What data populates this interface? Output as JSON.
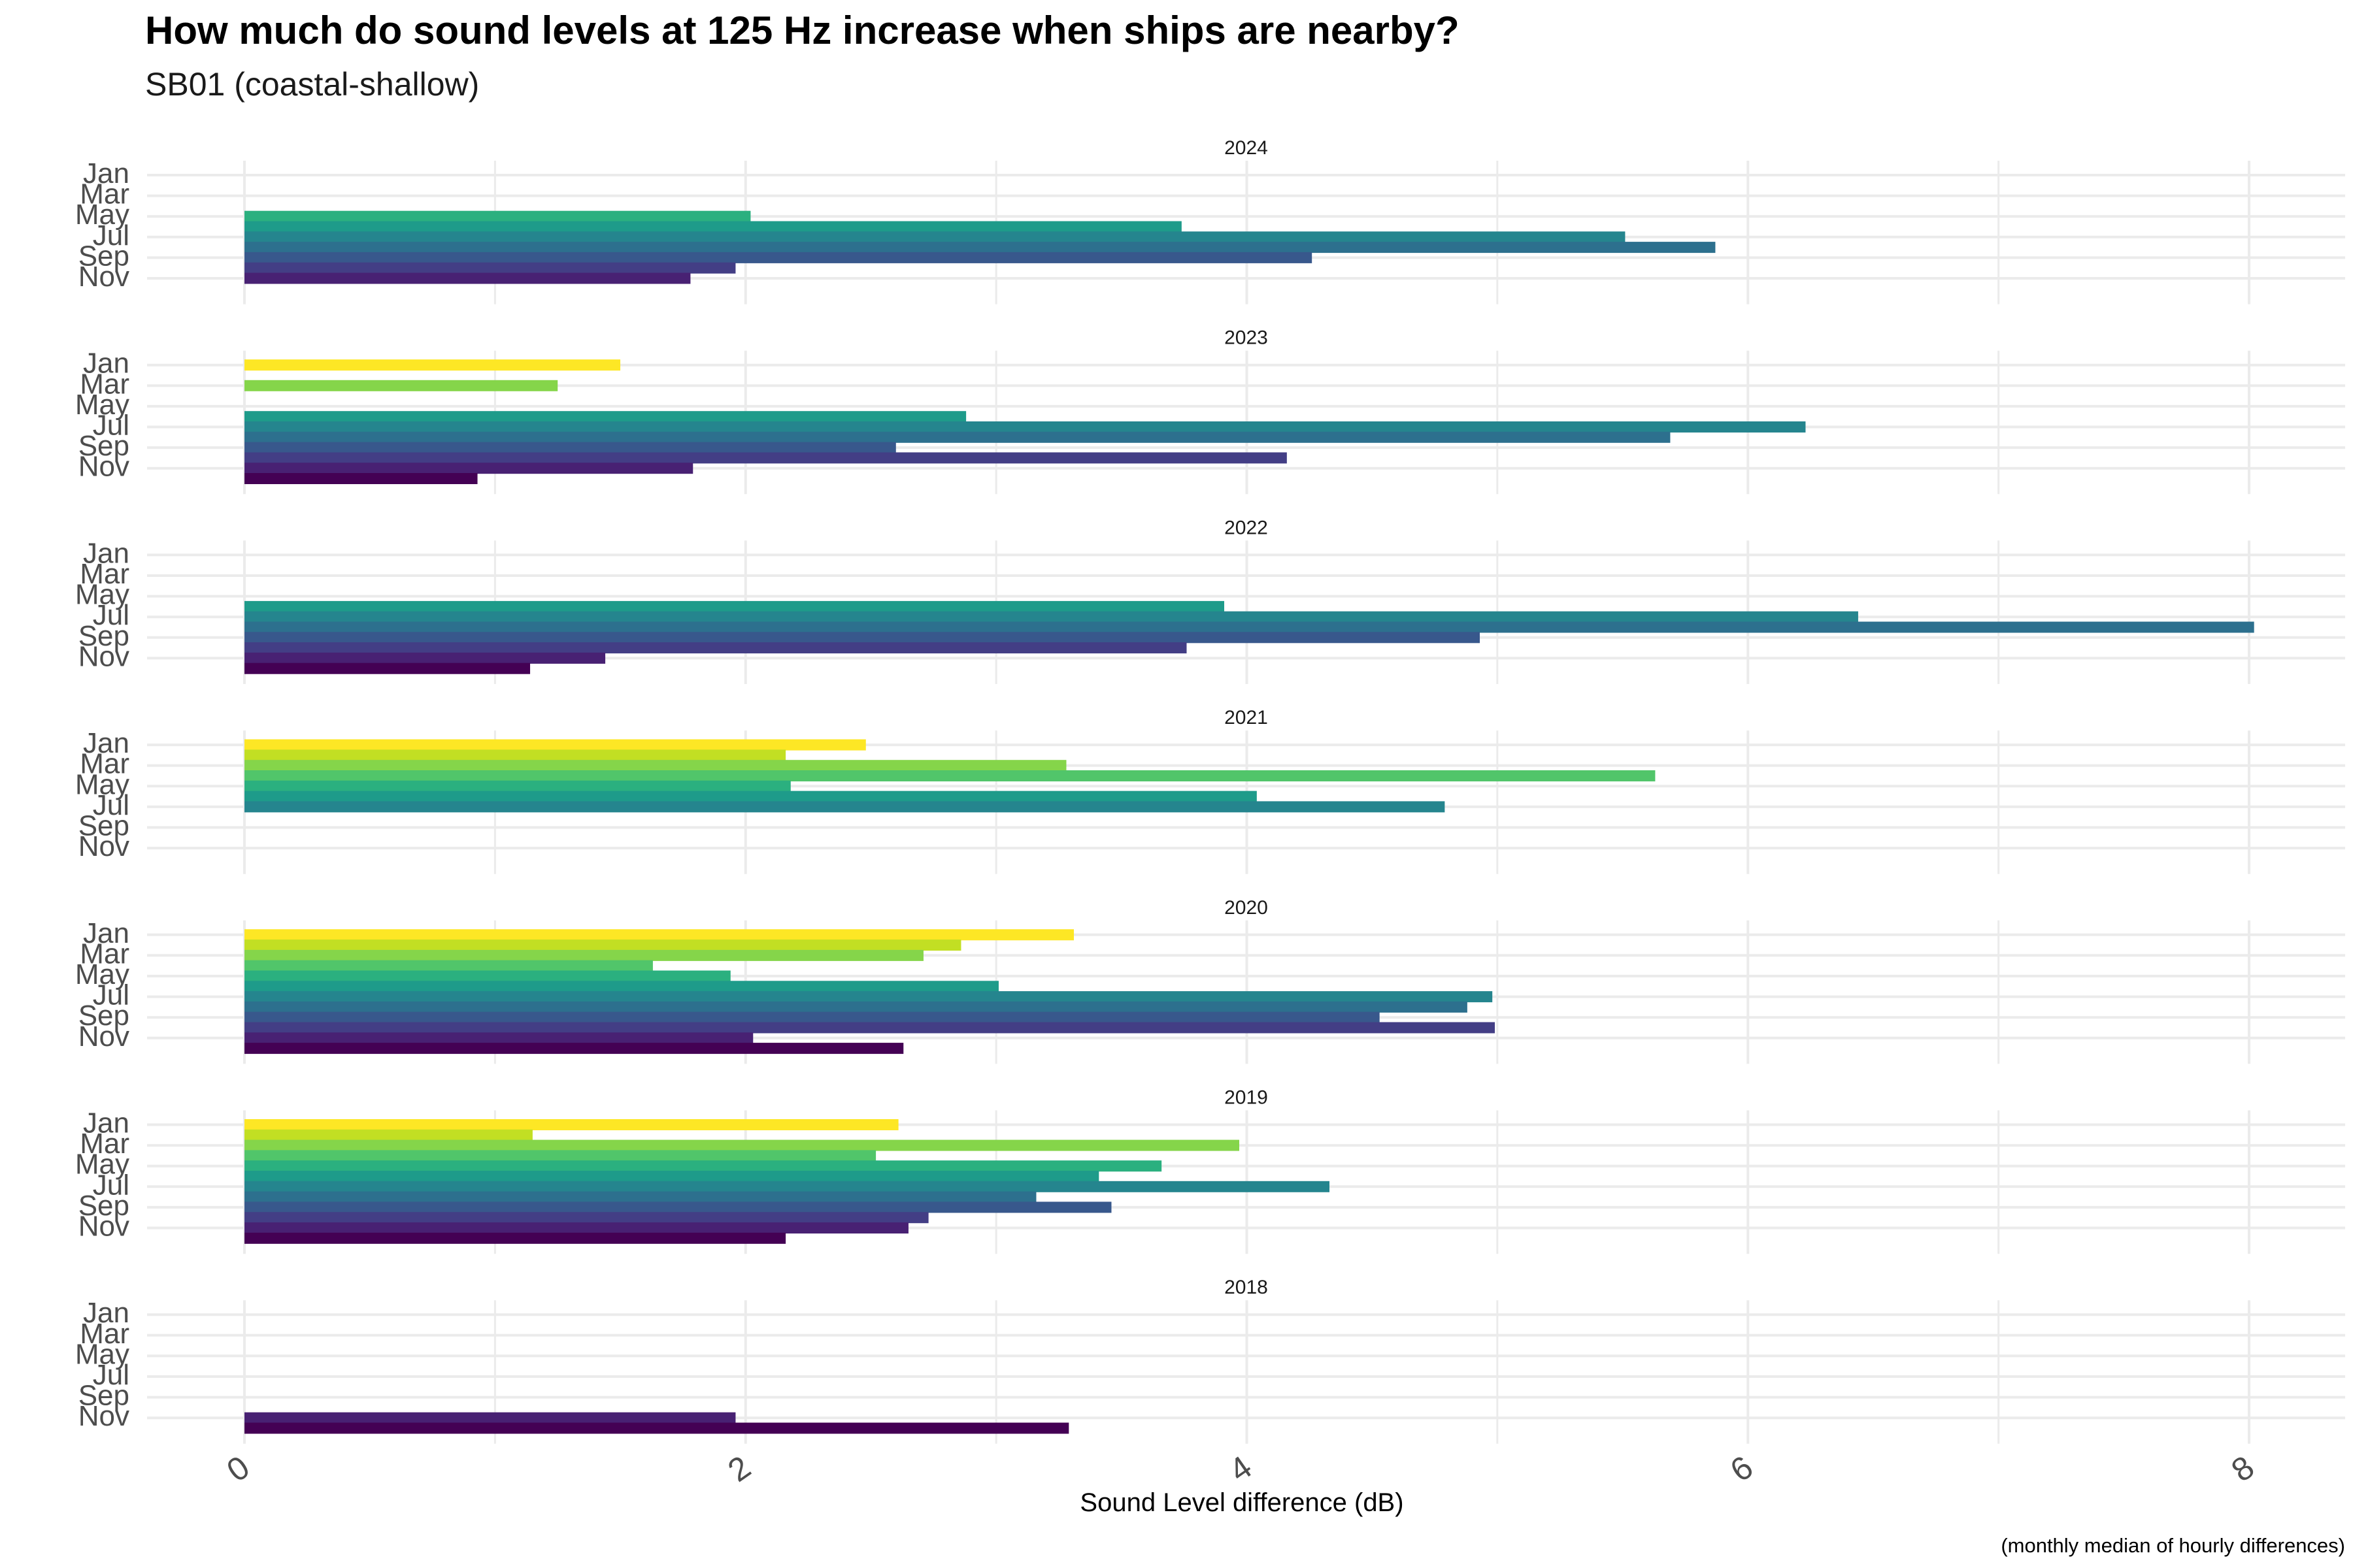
{
  "chart_data": {
    "type": "bar",
    "orientation": "horizontal",
    "title": "How much do sound levels at 125 Hz increase when ships are nearby?",
    "subtitle": "SB01 (coastal-shallow)",
    "xlabel": "Sound Level difference (dB)",
    "ylabel": "",
    "caption": "(monthly median of hourly differences)",
    "xlim": [
      -0.35,
      8.35
    ],
    "x_ticks": [
      0,
      2,
      4,
      6,
      8
    ],
    "y_tick_labels": [
      "Jan",
      "Mar",
      "May",
      "Jul",
      "Sep",
      "Nov"
    ],
    "months": [
      "Jan",
      "Feb",
      "Mar",
      "Apr",
      "May",
      "Jun",
      "Jul",
      "Aug",
      "Sep",
      "Oct",
      "Nov",
      "Dec"
    ],
    "color_scale": "viridis",
    "month_colors": [
      "#FDE725",
      "#C2DF23",
      "#85D54A",
      "#51C56A",
      "#2BB07F",
      "#1E9B8A",
      "#25858E",
      "#2D708E",
      "#38588C",
      "#433E85",
      "#482173",
      "#440154"
    ],
    "grid": true,
    "legend": "none",
    "panels": [
      {
        "label": "2024",
        "values": [
          null,
          null,
          null,
          null,
          2.02,
          3.74,
          5.51,
          5.87,
          4.26,
          1.96,
          1.78,
          null
        ]
      },
      {
        "label": "2023",
        "values": [
          1.5,
          null,
          1.25,
          null,
          null,
          2.88,
          6.23,
          5.69,
          2.6,
          4.16,
          1.79,
          0.93
        ]
      },
      {
        "label": "2022",
        "values": [
          null,
          null,
          null,
          null,
          null,
          3.91,
          6.44,
          8.02,
          4.93,
          3.76,
          1.44,
          1.14
        ]
      },
      {
        "label": "2021",
        "values": [
          2.48,
          2.16,
          3.28,
          5.63,
          2.18,
          4.04,
          4.79,
          null,
          null,
          null,
          null,
          null
        ]
      },
      {
        "label": "2020",
        "values": [
          3.31,
          2.86,
          2.71,
          1.63,
          1.94,
          3.01,
          4.98,
          4.88,
          4.53,
          4.99,
          2.03,
          2.63
        ]
      },
      {
        "label": "2019",
        "values": [
          2.61,
          1.15,
          3.97,
          2.52,
          3.66,
          3.41,
          4.33,
          3.16,
          3.46,
          2.73,
          2.65,
          2.16
        ]
      },
      {
        "label": "2018",
        "values": [
          null,
          null,
          null,
          null,
          null,
          null,
          null,
          null,
          null,
          null,
          1.96,
          3.29
        ]
      }
    ]
  }
}
